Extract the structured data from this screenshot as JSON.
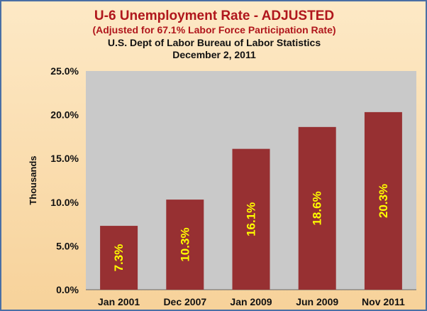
{
  "chart_data": {
    "type": "bar",
    "title": "U-6 Unemployment Rate - ADJUSTED",
    "subtitle": "(Adjusted for 67.1% Labor Force Participation Rate)",
    "source": "U.S. Dept of Labor Bureau of Labor Statistics",
    "date": "December 2, 2011",
    "ylabel": "Thousands",
    "xlabel": "",
    "categories": [
      "Jan 2001",
      "Dec 2007",
      "Jan 2009",
      "Jun 2009",
      "Nov 2011"
    ],
    "values": [
      7.3,
      10.3,
      16.1,
      18.6,
      20.3
    ],
    "data_labels": [
      "7.3%",
      "10.3%",
      "16.1%",
      "18.6%",
      "20.3%"
    ],
    "yticks": [
      "0.0%",
      "5.0%",
      "10.0%",
      "15.0%",
      "20.0%",
      "25.0%"
    ],
    "ylim": [
      0,
      25
    ],
    "grid": false,
    "legend": "none",
    "colors": {
      "bar": "#973032",
      "plot_area": "#c9c9c9",
      "data_label": "#ffff00",
      "title": "#b0161c",
      "frame_border": "#4a6fa5"
    }
  }
}
